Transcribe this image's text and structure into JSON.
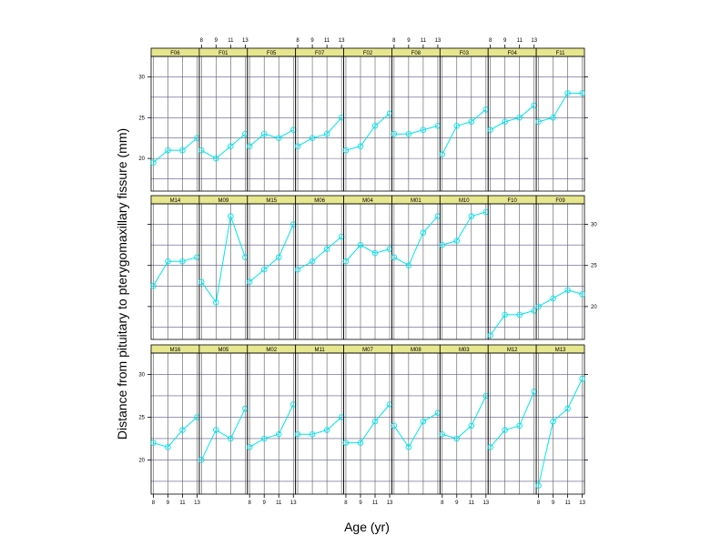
{
  "chart_data": {
    "type": "line",
    "xlabel": "Age (yr)",
    "ylabel": "Distance from pituitary to pterygomaxillary fissure (mm)",
    "x_ticks": [
      "8",
      "9",
      "11",
      "13"
    ],
    "y_ticks": [
      20,
      25,
      30
    ],
    "x_values": [
      8,
      10,
      12,
      14
    ],
    "xlim": [
      7.7,
      14.3
    ],
    "ylim": [
      16.0,
      32.5
    ],
    "grid": true,
    "colors": {
      "strip_fill": "#e6e68f",
      "line": "#00e5ee",
      "grid_vertical": "#5a5a5a",
      "grid_horizontal": "#5a5a80",
      "frame": "#000000"
    },
    "rows": [
      [
        {
          "name": "F06",
          "values": [
            19.5,
            21.0,
            21.0,
            22.5
          ]
        },
        {
          "name": "F01",
          "values": [
            21.0,
            20.0,
            21.5,
            23.0
          ]
        },
        {
          "name": "F05",
          "values": [
            21.5,
            23.0,
            22.5,
            23.5
          ]
        },
        {
          "name": "F07",
          "values": [
            21.5,
            22.5,
            23.0,
            25.0
          ]
        },
        {
          "name": "F02",
          "values": [
            21.0,
            21.5,
            24.0,
            25.5
          ]
        },
        {
          "name": "F08",
          "values": [
            23.0,
            23.0,
            23.5,
            24.0
          ]
        },
        {
          "name": "F03",
          "values": [
            20.5,
            24.0,
            24.5,
            26.0
          ]
        },
        {
          "name": "F04",
          "values": [
            23.5,
            24.5,
            25.0,
            26.5
          ]
        },
        {
          "name": "F11",
          "values": [
            24.5,
            25.0,
            28.0,
            28.0
          ]
        }
      ],
      [
        {
          "name": "M14",
          "values": [
            22.5,
            25.5,
            25.5,
            26.0
          ]
        },
        {
          "name": "M09",
          "values": [
            23.0,
            20.5,
            31.0,
            26.0
          ]
        },
        {
          "name": "M15",
          "values": [
            23.0,
            24.5,
            26.0,
            30.0
          ]
        },
        {
          "name": "M06",
          "values": [
            24.5,
            25.5,
            27.0,
            28.5
          ]
        },
        {
          "name": "M04",
          "values": [
            25.5,
            27.5,
            26.5,
            27.0
          ]
        },
        {
          "name": "M01",
          "values": [
            26.0,
            25.0,
            29.0,
            31.0
          ]
        },
        {
          "name": "M10",
          "values": [
            27.5,
            28.0,
            31.0,
            31.5
          ]
        },
        {
          "name": "F10",
          "values": [
            16.5,
            19.0,
            19.0,
            19.5
          ]
        },
        {
          "name": "F09",
          "values": [
            20.0,
            21.0,
            22.0,
            21.5
          ]
        }
      ],
      [
        {
          "name": "M16",
          "values": [
            22.0,
            21.5,
            23.5,
            25.0
          ]
        },
        {
          "name": "M05",
          "values": [
            20.0,
            23.5,
            22.5,
            26.0
          ]
        },
        {
          "name": "M02",
          "values": [
            21.5,
            22.5,
            23.0,
            26.5
          ]
        },
        {
          "name": "M11",
          "values": [
            23.0,
            23.0,
            23.5,
            25.0
          ]
        },
        {
          "name": "M07",
          "values": [
            22.0,
            22.0,
            24.5,
            26.5
          ]
        },
        {
          "name": "M08",
          "values": [
            24.0,
            21.5,
            24.5,
            25.5
          ]
        },
        {
          "name": "M03",
          "values": [
            23.0,
            22.5,
            24.0,
            27.5
          ]
        },
        {
          "name": "M12",
          "values": [
            21.5,
            23.5,
            24.0,
            28.0
          ]
        },
        {
          "name": "M13",
          "values": [
            17.0,
            24.5,
            26.0,
            29.5
          ]
        }
      ]
    ]
  }
}
